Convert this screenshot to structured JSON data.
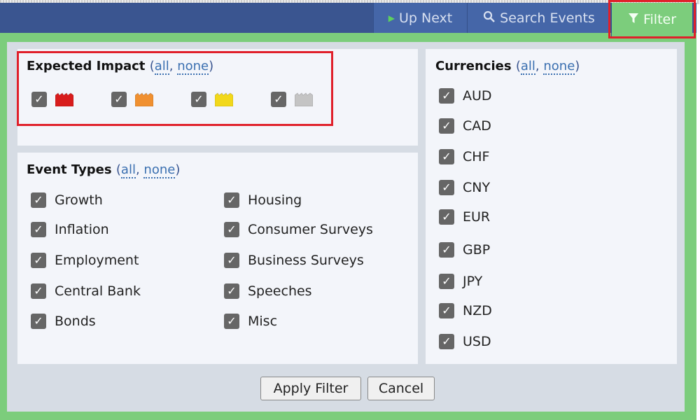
{
  "nav": {
    "up_next": "Up Next",
    "search_events": "Search Events",
    "filter": "Filter"
  },
  "impact": {
    "title": "Expected Impact",
    "all": "all",
    "none": "none",
    "levels": [
      {
        "name": "high",
        "color": "#d81c1c",
        "checked": true
      },
      {
        "name": "medium",
        "color": "#f09030",
        "checked": true
      },
      {
        "name": "low",
        "color": "#f2d81a",
        "checked": true
      },
      {
        "name": "non-economic",
        "color": "#c4c4c4",
        "checked": true
      }
    ]
  },
  "event_types": {
    "title": "Event Types",
    "all": "all",
    "none": "none",
    "items": [
      "Growth",
      "Inflation",
      "Employment",
      "Central Bank",
      "Bonds",
      "Housing",
      "Consumer Surveys",
      "Business Surveys",
      "Speeches",
      "Misc"
    ]
  },
  "currencies": {
    "title": "Currencies",
    "all": "all",
    "none": "none",
    "items": [
      "AUD",
      "CAD",
      "CHF",
      "CNY",
      "EUR",
      "GBP",
      "JPY",
      "NZD",
      "USD"
    ]
  },
  "buttons": {
    "apply": "Apply Filter",
    "cancel": "Cancel"
  },
  "colors": {
    "nav": "#3a5590",
    "active_tab": "#7ccd7c",
    "highlight": "#e0202a"
  }
}
